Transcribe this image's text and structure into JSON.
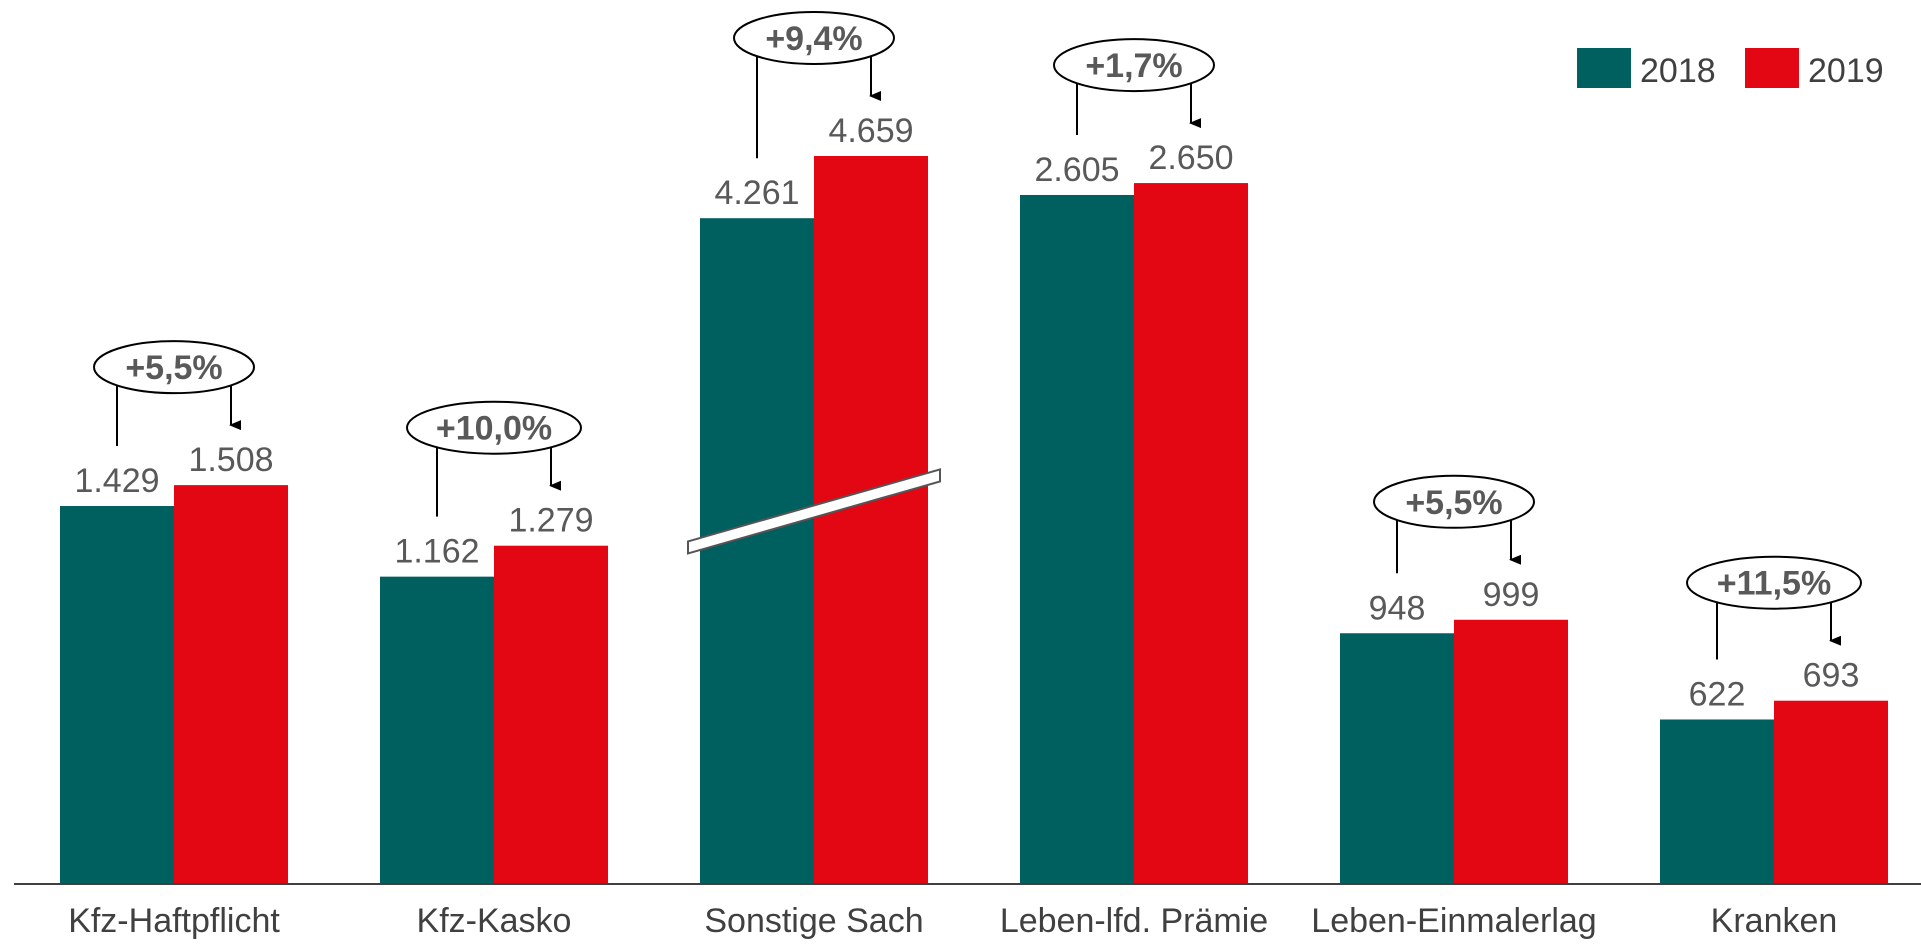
{
  "chart_data": {
    "type": "bar",
    "categories": [
      "Kfz-Haftpflicht",
      "Kfz-Kasko",
      "Sonstige Sach",
      "Leben-lfd. Prämie",
      "Leben-Einmalerlag",
      "Kranken"
    ],
    "series": [
      {
        "name": "2018",
        "color": "#005F5F",
        "values": [
          1429,
          1162,
          4261,
          2605,
          948,
          622
        ],
        "labels": [
          "1.429",
          "1.162",
          "4.261",
          "2.605",
          "948",
          "622"
        ]
      },
      {
        "name": "2019",
        "color": "#E30613",
        "values": [
          1508,
          1279,
          4659,
          2650,
          999,
          693
        ],
        "labels": [
          "1.508",
          "1.279",
          "4.659",
          "2.650",
          "999",
          "693"
        ]
      }
    ],
    "changes": [
      "+5,5%",
      "+10,0%",
      "+9,4%",
      "+1,7%",
      "+5,5%",
      "+11,5%"
    ],
    "broken_axis_category": "Sonstige Sach",
    "legend_position": "top-right",
    "grid": false,
    "title": "",
    "xlabel": "",
    "ylabel": ""
  }
}
